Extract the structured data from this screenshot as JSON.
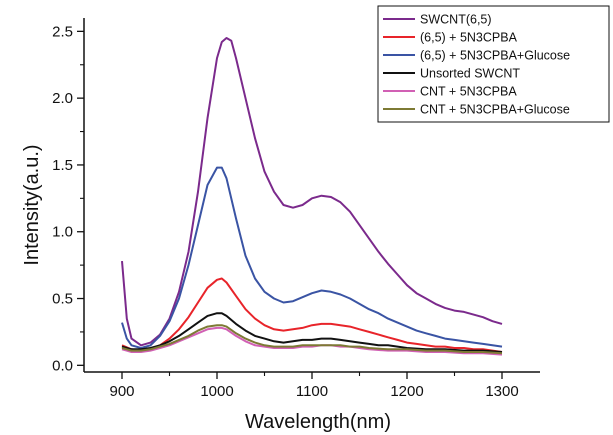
{
  "chart_data": {
    "type": "line",
    "xlabel": "Wavelength(nm)",
    "ylabel": "Intensity(a.u.)",
    "xlim": [
      860,
      1340
    ],
    "ylim": [
      -0.05,
      2.6
    ],
    "xticks": [
      900,
      1000,
      1100,
      1200,
      1300
    ],
    "yticks": [
      0.0,
      0.5,
      1.0,
      1.5,
      2.0,
      2.5
    ],
    "ytick_labels": [
      "0.0",
      "0.5",
      "1.0",
      "1.5",
      "2.0",
      "2.5"
    ],
    "grid": false,
    "legend_position": "top-right",
    "series": [
      {
        "name": "SWCNT(6,5)",
        "color": "#7b2a8c",
        "x": [
          900,
          905,
          910,
          920,
          930,
          940,
          950,
          960,
          970,
          980,
          990,
          1000,
          1005,
          1010,
          1015,
          1020,
          1030,
          1040,
          1050,
          1060,
          1070,
          1080,
          1090,
          1100,
          1110,
          1120,
          1130,
          1140,
          1150,
          1160,
          1170,
          1180,
          1190,
          1200,
          1210,
          1220,
          1230,
          1240,
          1250,
          1260,
          1270,
          1280,
          1290,
          1300
        ],
        "y": [
          0.78,
          0.35,
          0.2,
          0.15,
          0.17,
          0.23,
          0.35,
          0.55,
          0.85,
          1.3,
          1.85,
          2.3,
          2.42,
          2.45,
          2.43,
          2.3,
          2.0,
          1.7,
          1.45,
          1.3,
          1.2,
          1.18,
          1.2,
          1.25,
          1.27,
          1.26,
          1.22,
          1.15,
          1.05,
          0.95,
          0.85,
          0.76,
          0.68,
          0.6,
          0.54,
          0.5,
          0.46,
          0.43,
          0.41,
          0.4,
          0.38,
          0.36,
          0.33,
          0.31
        ]
      },
      {
        "name": "(6,5) + 5N3CPBA",
        "color": "#e8242a",
        "x": [
          900,
          910,
          920,
          930,
          940,
          950,
          960,
          970,
          980,
          990,
          1000,
          1005,
          1010,
          1020,
          1030,
          1040,
          1050,
          1060,
          1070,
          1080,
          1090,
          1100,
          1110,
          1120,
          1130,
          1140,
          1150,
          1160,
          1170,
          1180,
          1190,
          1200,
          1210,
          1220,
          1230,
          1240,
          1250,
          1260,
          1270,
          1280,
          1290,
          1300
        ],
        "y": [
          0.15,
          0.12,
          0.11,
          0.12,
          0.15,
          0.2,
          0.27,
          0.36,
          0.47,
          0.58,
          0.64,
          0.65,
          0.62,
          0.52,
          0.42,
          0.35,
          0.3,
          0.27,
          0.26,
          0.27,
          0.28,
          0.3,
          0.31,
          0.31,
          0.3,
          0.29,
          0.27,
          0.25,
          0.23,
          0.21,
          0.19,
          0.17,
          0.16,
          0.15,
          0.14,
          0.14,
          0.13,
          0.13,
          0.12,
          0.12,
          0.11,
          0.1
        ]
      },
      {
        "name": "(6,5) + 5N3CPBA+Glucose",
        "color": "#3a54a4",
        "x": [
          900,
          905,
          910,
          920,
          930,
          940,
          950,
          960,
          970,
          980,
          990,
          1000,
          1005,
          1010,
          1020,
          1030,
          1040,
          1050,
          1060,
          1070,
          1080,
          1090,
          1100,
          1110,
          1120,
          1130,
          1140,
          1150,
          1160,
          1170,
          1180,
          1190,
          1200,
          1210,
          1220,
          1230,
          1240,
          1250,
          1260,
          1270,
          1280,
          1290,
          1300
        ],
        "y": [
          0.32,
          0.2,
          0.15,
          0.13,
          0.15,
          0.22,
          0.33,
          0.5,
          0.75,
          1.05,
          1.35,
          1.48,
          1.48,
          1.4,
          1.1,
          0.82,
          0.65,
          0.55,
          0.5,
          0.47,
          0.48,
          0.51,
          0.54,
          0.56,
          0.55,
          0.53,
          0.5,
          0.46,
          0.42,
          0.39,
          0.35,
          0.32,
          0.29,
          0.26,
          0.24,
          0.22,
          0.2,
          0.19,
          0.18,
          0.17,
          0.16,
          0.15,
          0.14
        ]
      },
      {
        "name": "Unsorted SWCNT",
        "color": "#111111",
        "x": [
          900,
          910,
          920,
          930,
          940,
          950,
          960,
          970,
          980,
          990,
          1000,
          1005,
          1010,
          1020,
          1030,
          1040,
          1050,
          1060,
          1070,
          1080,
          1090,
          1100,
          1110,
          1120,
          1130,
          1140,
          1150,
          1160,
          1170,
          1180,
          1190,
          1200,
          1220,
          1240,
          1260,
          1280,
          1300
        ],
        "y": [
          0.14,
          0.12,
          0.12,
          0.13,
          0.15,
          0.18,
          0.22,
          0.27,
          0.32,
          0.37,
          0.39,
          0.39,
          0.37,
          0.31,
          0.26,
          0.22,
          0.2,
          0.18,
          0.17,
          0.18,
          0.19,
          0.19,
          0.2,
          0.2,
          0.19,
          0.18,
          0.17,
          0.16,
          0.15,
          0.15,
          0.14,
          0.13,
          0.12,
          0.12,
          0.11,
          0.11,
          0.1
        ]
      },
      {
        "name": "CNT + 5N3CPBA",
        "color": "#d160b4",
        "x": [
          900,
          910,
          920,
          930,
          940,
          950,
          960,
          970,
          980,
          990,
          1000,
          1005,
          1010,
          1020,
          1030,
          1040,
          1050,
          1060,
          1070,
          1080,
          1090,
          1100,
          1110,
          1120,
          1130,
          1140,
          1150,
          1160,
          1180,
          1200,
          1220,
          1240,
          1260,
          1280,
          1300
        ],
        "y": [
          0.12,
          0.1,
          0.1,
          0.11,
          0.13,
          0.15,
          0.18,
          0.21,
          0.24,
          0.27,
          0.28,
          0.28,
          0.27,
          0.22,
          0.18,
          0.15,
          0.14,
          0.13,
          0.13,
          0.13,
          0.14,
          0.14,
          0.15,
          0.15,
          0.14,
          0.14,
          0.13,
          0.12,
          0.11,
          0.11,
          0.1,
          0.1,
          0.09,
          0.09,
          0.08
        ]
      },
      {
        "name": "CNT + 5N3CPBA+Glucose",
        "color": "#7d7a34",
        "x": [
          900,
          910,
          920,
          930,
          940,
          950,
          960,
          970,
          980,
          990,
          1000,
          1005,
          1010,
          1020,
          1030,
          1040,
          1050,
          1060,
          1070,
          1080,
          1090,
          1100,
          1110,
          1120,
          1130,
          1140,
          1150,
          1160,
          1180,
          1200,
          1220,
          1240,
          1260,
          1280,
          1300
        ],
        "y": [
          0.13,
          0.11,
          0.11,
          0.12,
          0.14,
          0.16,
          0.19,
          0.22,
          0.26,
          0.29,
          0.3,
          0.3,
          0.29,
          0.24,
          0.2,
          0.17,
          0.15,
          0.14,
          0.14,
          0.14,
          0.15,
          0.15,
          0.15,
          0.15,
          0.15,
          0.14,
          0.14,
          0.13,
          0.12,
          0.12,
          0.11,
          0.11,
          0.1,
          0.1,
          0.09
        ]
      }
    ]
  }
}
